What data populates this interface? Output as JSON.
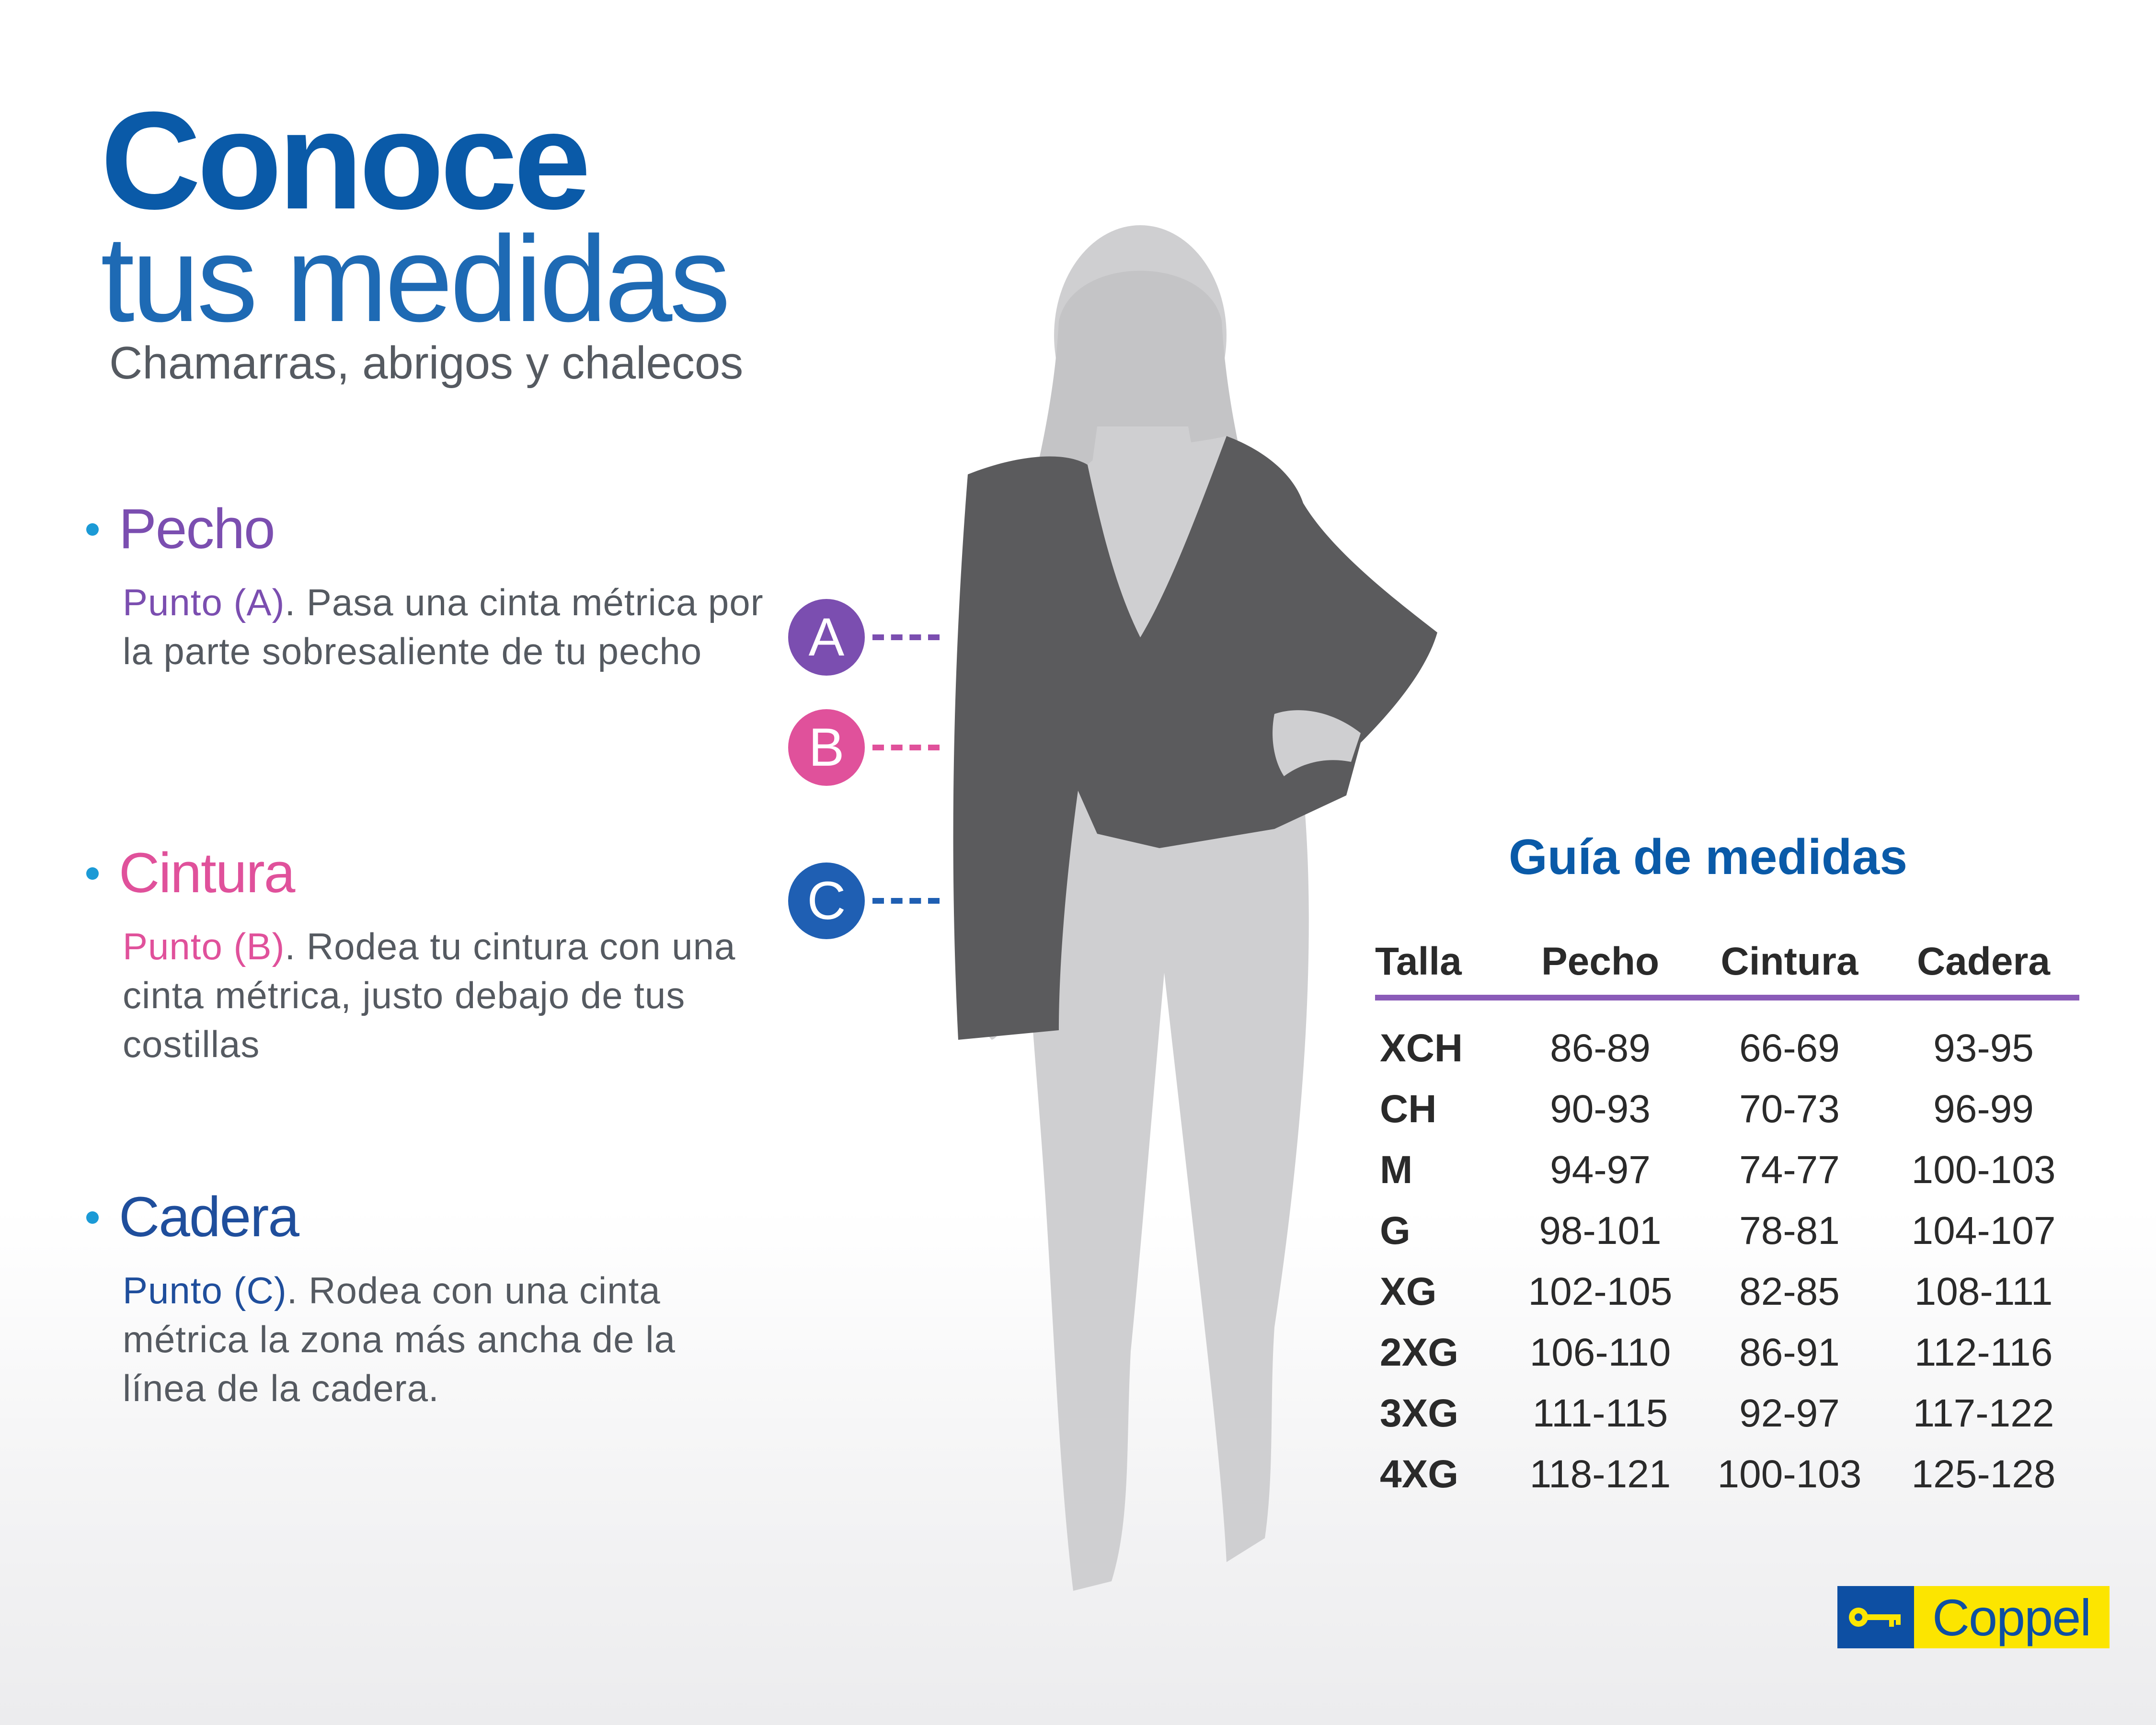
{
  "header": {
    "title": "Conoce",
    "title_sub": "tus medidas",
    "subtitle": "Chamarras, abrigos y chalecos"
  },
  "sections": [
    {
      "title": "Pecho",
      "punto": "Punto (A)",
      "text": ". Pasa una cinta métrica por la parte sobresaliente de tu pecho",
      "color": "#7b4eb0"
    },
    {
      "title": "Cintura",
      "punto": "Punto (B)",
      "text": ". Rodea tu cintura con una cinta métrica, justo debajo de tus costillas",
      "color": "#e0519b"
    },
    {
      "title": "Cadera",
      "punto": "Punto (C)",
      "text": ". Rodea con una cinta métrica la zona más ancha de la línea de la cadera.",
      "color": "#1f4e9c"
    }
  ],
  "markers": [
    {
      "label": "A",
      "color": "#7b4eb0"
    },
    {
      "label": "B",
      "color": "#e0519b"
    },
    {
      "label": "C",
      "color": "#1f5fb3"
    }
  ],
  "table": {
    "title": "Guía de medidas",
    "headers": [
      "Talla",
      "Pecho",
      "Cintura",
      "Cadera"
    ],
    "rows": [
      [
        "XCH",
        "86-89",
        "66-69",
        "93-95"
      ],
      [
        "CH",
        "90-93",
        "70-73",
        "96-99"
      ],
      [
        "M",
        "94-97",
        "74-77",
        "100-103"
      ],
      [
        "G",
        "98-101",
        "78-81",
        "104-107"
      ],
      [
        "XG",
        "102-105",
        "82-85",
        "108-111"
      ],
      [
        "2XG",
        "106-110",
        "86-91",
        "112-116"
      ],
      [
        "3XG",
        "111-115",
        "92-97",
        "117-122"
      ],
      [
        "4XG",
        "118-121",
        "100-103",
        "125-128"
      ]
    ],
    "rule_color": "#8a5bb8"
  },
  "logo": {
    "text": "Coppel",
    "icon": "key-icon",
    "colors": {
      "key_bg": "#0d4fa3",
      "word_bg": "#fce500"
    }
  },
  "colors": {
    "title_blue": "#0a5aa8",
    "body_gray": "#555a61",
    "bullet_blue": "#1b9ad6",
    "jacket": "#5b5b5d",
    "silhouette": "#cfcfd1"
  }
}
